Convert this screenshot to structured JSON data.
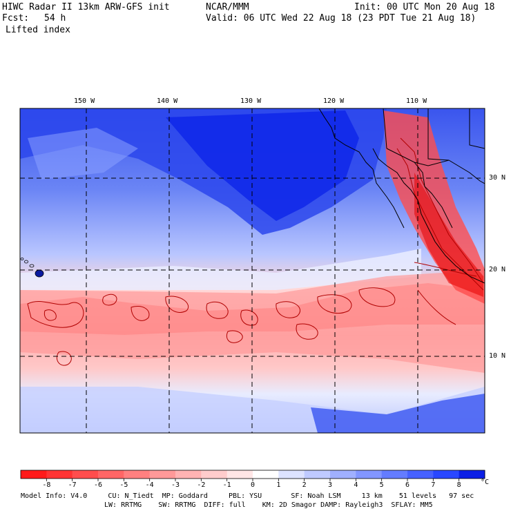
{
  "header": {
    "title_left": "HIWC Radar II 13km ARW-GFS init",
    "title_center": "NCAR/MMM",
    "init": "Init: 00 UTC Mon 20 Aug 18",
    "fcst_label": "Fcst:",
    "fcst_value": "54 h",
    "valid": "Valid: 06 UTC Wed 22 Aug 18 (23 PDT Tue 21 Aug 18)",
    "field": "Lifted index"
  },
  "map": {
    "lon_labels": [
      "150 W",
      "140 W",
      "130 W",
      "120 W",
      "110 W"
    ],
    "lat_labels": [
      "30 N",
      "20 N",
      "10 N"
    ]
  },
  "colorbar": {
    "labels": [
      "-8",
      "-7",
      "-6",
      "-5",
      "-4",
      "-3",
      "-2",
      "-1",
      "0",
      "1",
      "2",
      "3",
      "4",
      "5",
      "6",
      "7",
      "8"
    ],
    "unit": "°C",
    "colors": [
      "#ff1a1a",
      "#ff3333",
      "#ff4d4d",
      "#ff6666",
      "#ff8080",
      "#ff9999",
      "#ffb3b3",
      "#ffcccc",
      "#ffe6e6",
      "#ffffff",
      "#dde3ff",
      "#bfcaff",
      "#a0b0ff",
      "#8296ff",
      "#647cff",
      "#4661ff",
      "#2947ff",
      "#0b1fe6"
    ]
  },
  "footer": {
    "line1": "Model Info: V4.0     CU: N_Tiedt  MP: Goddard     PBL: YSU       SF: Noah LSM     13 km    51 levels   97 sec",
    "line2": "LW: RRTMG    SW: RRTMG  DIFF: full    KM: 2D Smagor DAMP: Rayleigh3  SFLAY: MM5"
  }
}
